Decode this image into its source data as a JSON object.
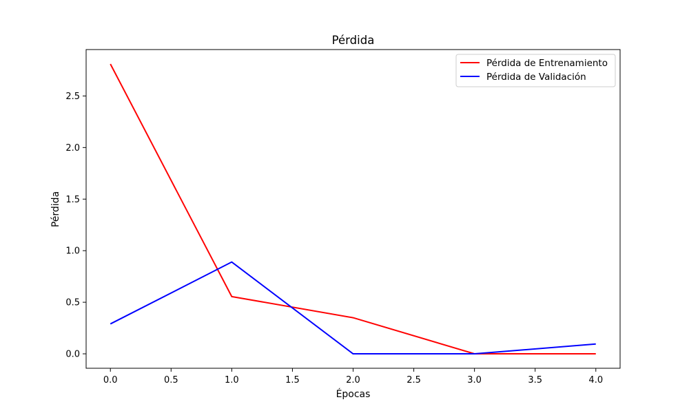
{
  "chart_data": {
    "type": "line",
    "title": "Pérdida",
    "xlabel": "Épocas",
    "ylabel": "Pérdida",
    "x": [
      0,
      1,
      2,
      3,
      4
    ],
    "series": [
      {
        "name": "Pérdida de Entrenamiento",
        "color": "#ff0000",
        "values": [
          2.81,
          0.555,
          0.35,
          0.0,
          0.0
        ]
      },
      {
        "name": "Pérdida de Validación",
        "color": "#0000ff",
        "values": [
          0.29,
          0.89,
          0.0,
          0.0,
          0.095
        ]
      }
    ],
    "xticks": [
      "0.0",
      "0.5",
      "1.0",
      "1.5",
      "2.0",
      "2.5",
      "3.0",
      "3.5",
      "4.0"
    ],
    "yticks": [
      "0.0",
      "0.5",
      "1.0",
      "1.5",
      "2.0",
      "2.5"
    ],
    "xlim": [
      -0.2,
      4.2
    ],
    "ylim": [
      -0.14,
      2.95
    ],
    "grid": false,
    "legend_position": "top-right"
  }
}
